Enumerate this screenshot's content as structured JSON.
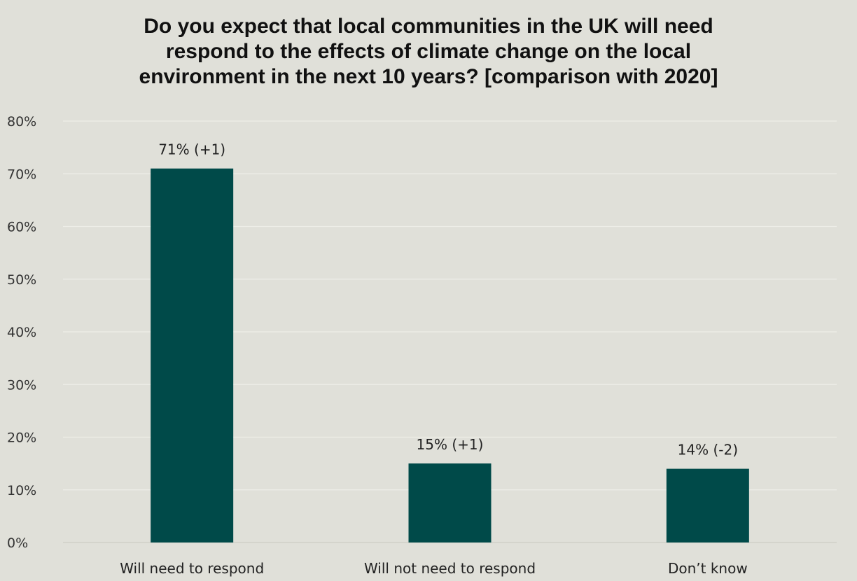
{
  "chart_data": {
    "type": "bar",
    "title_lines": [
      "Do you expect that local communities in the UK will need",
      "respond to the effects of climate change on the local",
      "environment in the next 10 years? [comparison with 2020]"
    ],
    "categories": [
      "Will need to respond",
      "Will not need to respond",
      "Don’t know"
    ],
    "values": [
      71,
      15,
      14
    ],
    "data_labels": [
      "71% (+1)",
      "15% (+1)",
      "14% (-2)"
    ],
    "ylim": [
      0,
      80
    ],
    "yticks": [
      0,
      10,
      20,
      30,
      40,
      50,
      60,
      70,
      80
    ],
    "ytick_labels": [
      "0%",
      "10%",
      "20%",
      "30%",
      "40%",
      "50%",
      "60%",
      "70%",
      "80%"
    ],
    "grid": true,
    "bar_color": "#004a49",
    "grid_color": "#eeeee8",
    "background_color": "#e0e0d9"
  }
}
